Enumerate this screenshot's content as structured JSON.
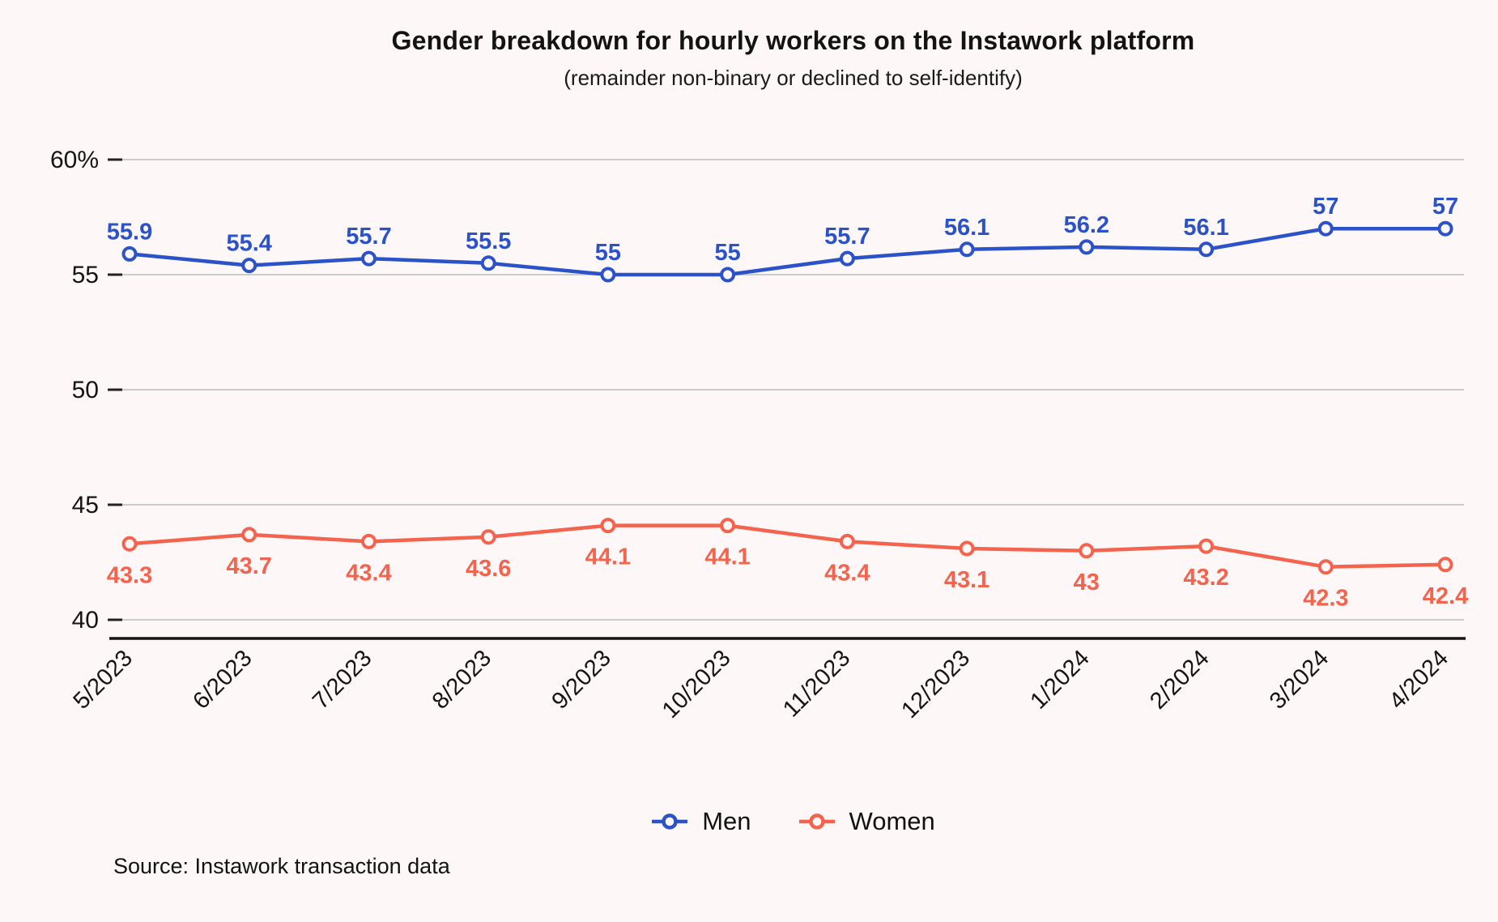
{
  "page": {
    "source": "Source: Instawork transaction data",
    "background_color": "#FDF8F7"
  },
  "chart_data": {
    "type": "line",
    "title": "Gender breakdown for hourly workers on the Instawork platform",
    "subtitle": "(remainder non-binary or declined to self-identify)",
    "categories": [
      "5/2023",
      "6/2023",
      "7/2023",
      "8/2023",
      "9/2023",
      "10/2023",
      "11/2023",
      "12/2023",
      "1/2024",
      "2/2024",
      "3/2024",
      "4/2024"
    ],
    "series": [
      {
        "name": "Men",
        "color": "#2B52C8",
        "label_position": "above",
        "values": [
          55.9,
          55.4,
          55.7,
          55.5,
          55,
          55,
          55.7,
          56.1,
          56.2,
          56.1,
          57,
          57
        ]
      },
      {
        "name": "Women",
        "color": "#F4634D",
        "label_position": "below",
        "values": [
          43.3,
          43.7,
          43.4,
          43.6,
          44.1,
          44.1,
          43.4,
          43.1,
          43,
          43.2,
          42.3,
          42.4
        ]
      }
    ],
    "y_axis": {
      "min": 40,
      "max": 60,
      "unit": "%",
      "ticks": [
        60,
        55,
        50,
        45,
        40
      ],
      "tick_labels": [
        "60%",
        "55",
        "50",
        "45",
        "40"
      ]
    },
    "x_axis": {
      "label_rotation_deg": -45
    },
    "grid": true,
    "data_labels": true,
    "legend_position": "bottom"
  }
}
